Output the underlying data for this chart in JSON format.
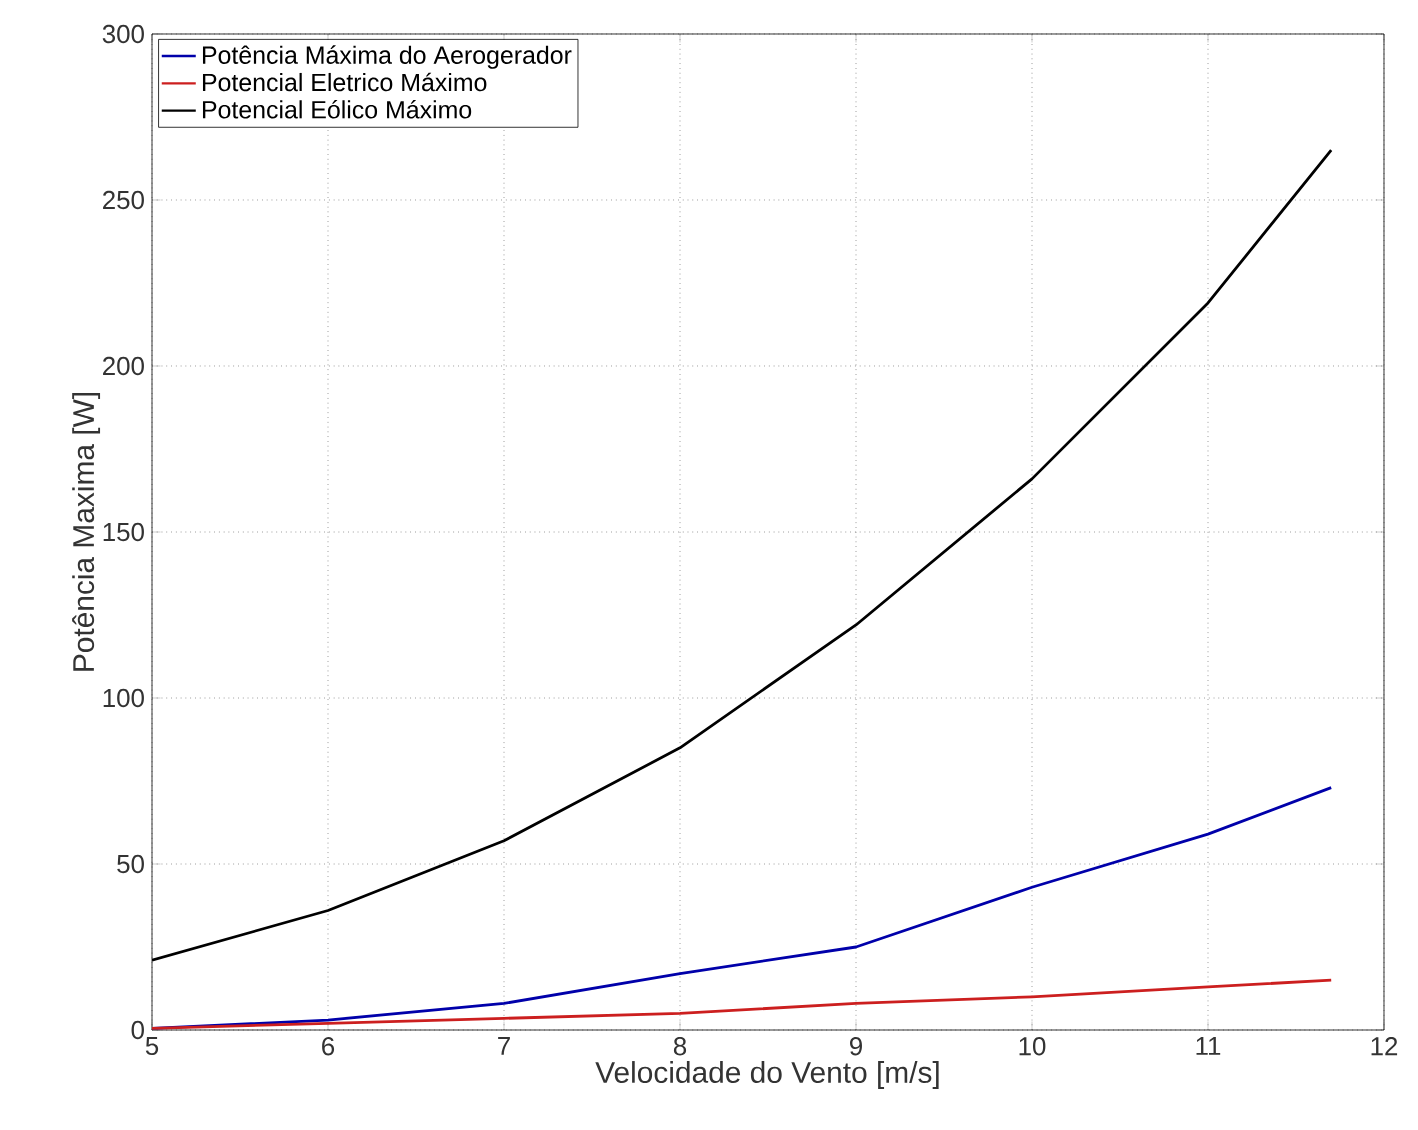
{
  "chart_data": {
    "type": "line",
    "xlabel": "Velocidade do Vento [m/s]",
    "ylabel": "Potência Maxima [W]",
    "x": [
      5,
      6,
      7,
      8,
      9,
      10,
      11,
      11.7
    ],
    "series": [
      {
        "name": "Potência Máxima do Aerogerador",
        "color": "#0000aa",
        "values": [
          0.5,
          3,
          8,
          17,
          25,
          43,
          59,
          73
        ]
      },
      {
        "name": "Potencial Eletrico Máximo",
        "color": "#cc1f1f",
        "values": [
          0.5,
          2,
          3.5,
          5,
          8,
          10,
          13,
          15
        ]
      },
      {
        "name": "Potencial Eólico Máximo",
        "color": "#000000",
        "values": [
          21,
          36,
          57,
          85,
          122,
          166,
          219,
          265
        ]
      }
    ],
    "xlim": [
      5,
      12
    ],
    "ylim": [
      0,
      300
    ],
    "xticks": [
      5,
      6,
      7,
      8,
      9,
      10,
      11,
      12
    ],
    "yticks": [
      0,
      50,
      100,
      150,
      200,
      250,
      300
    ],
    "grid": true,
    "legend": "top left",
    "line_style": "solid",
    "marker": "none"
  }
}
